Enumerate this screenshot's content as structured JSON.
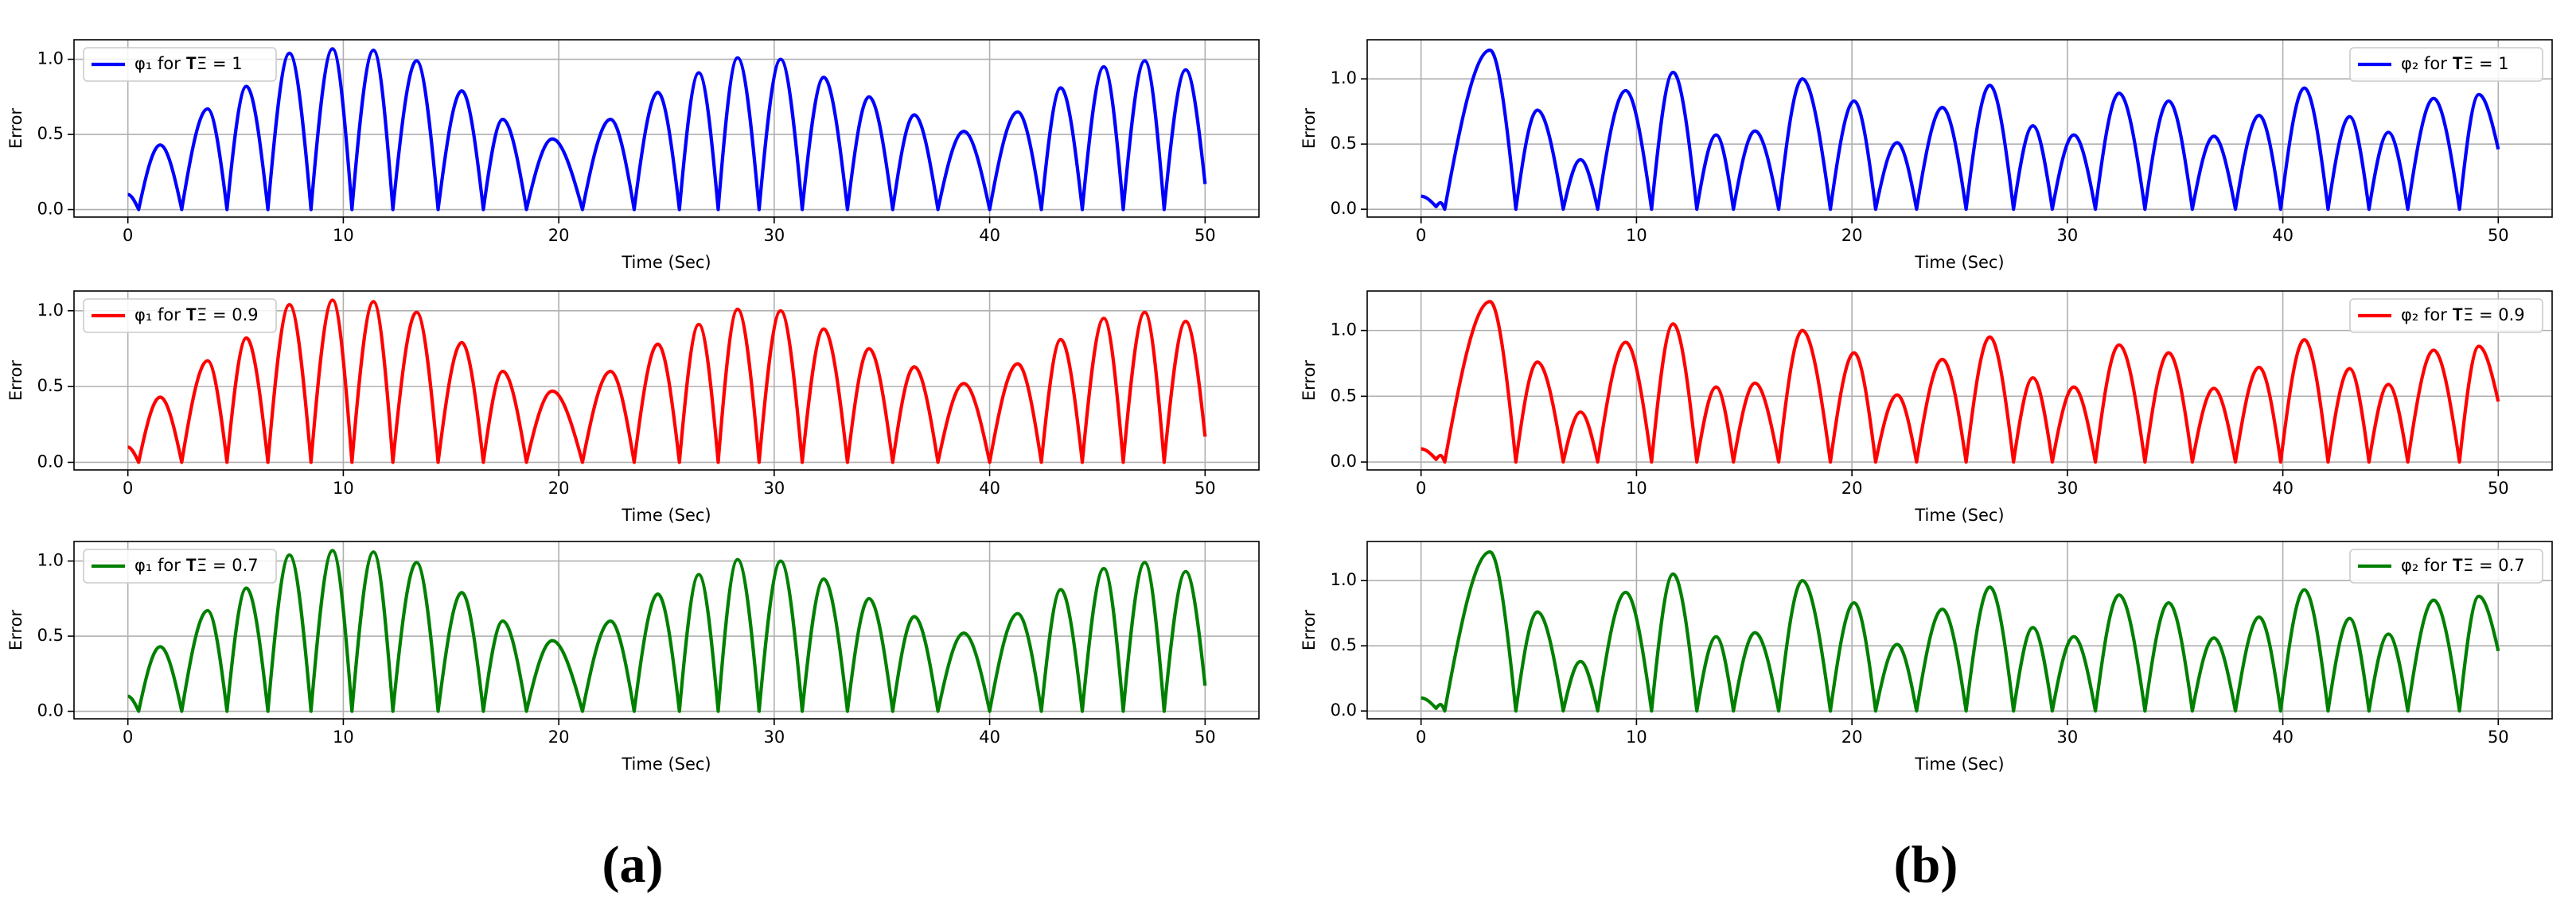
{
  "chart_data": [
    {
      "type": "line",
      "xlabel": "Time (Sec)",
      "ylabel": "Error",
      "x": [
        0,
        0.5,
        1.5,
        2.5,
        3.7,
        4.6,
        5.5,
        6.5,
        7.5,
        8.5,
        9.5,
        10.4,
        11.4,
        12.3,
        13.4,
        14.4,
        15.5,
        16.5,
        17.4,
        18.5,
        19.7,
        21.1,
        22.4,
        23.5,
        24.6,
        25.6,
        26.5,
        27.4,
        28.3,
        29.3,
        30.3,
        31.3,
        32.3,
        33.4,
        34.4,
        35.5,
        36.5,
        37.6,
        38.8,
        40.0,
        41.3,
        42.4,
        43.3,
        44.3,
        45.3,
        46.2,
        47.2,
        48.1,
        49.1,
        50
      ],
      "series": [
        {
          "name": "φ₁ for 𝐓Ξ = 1",
          "color": "#0000ff",
          "values": [
            0.1,
            0,
            0.43,
            0,
            0.67,
            0,
            0.82,
            0,
            1.04,
            0,
            1.07,
            0,
            1.06,
            0,
            0.99,
            0,
            0.79,
            0,
            0.6,
            0,
            0.47,
            0,
            0.6,
            0,
            0.78,
            0,
            0.91,
            0,
            1.01,
            0,
            1.0,
            0,
            0.88,
            0,
            0.75,
            0,
            0.63,
            0,
            0.52,
            0,
            0.65,
            0,
            0.81,
            0,
            0.95,
            0,
            0.99,
            0,
            0.93,
            0.17
          ]
        }
      ],
      "xlim": [
        -2.5,
        52.5
      ],
      "ylim": [
        -0.05,
        1.13
      ],
      "xticks": [
        0,
        10,
        20,
        30,
        40,
        50
      ],
      "yticks": [
        {
          "value": 0,
          "label": "0.0"
        },
        {
          "value": 0.5,
          "label": "0.5"
        },
        {
          "value": 1,
          "label": "1.0"
        }
      ],
      "grid": true,
      "legend": "upper left"
    },
    {
      "type": "line",
      "xlabel": "Time (Sec)",
      "ylabel": "Error",
      "x": [
        0,
        0.5,
        1.5,
        2.5,
        3.7,
        4.6,
        5.5,
        6.5,
        7.5,
        8.5,
        9.5,
        10.4,
        11.4,
        12.3,
        13.4,
        14.4,
        15.5,
        16.5,
        17.4,
        18.5,
        19.7,
        21.1,
        22.4,
        23.5,
        24.6,
        25.6,
        26.5,
        27.4,
        28.3,
        29.3,
        30.3,
        31.3,
        32.3,
        33.4,
        34.4,
        35.5,
        36.5,
        37.6,
        38.8,
        40.0,
        41.3,
        42.4,
        43.3,
        44.3,
        45.3,
        46.2,
        47.2,
        48.1,
        49.1,
        50
      ],
      "series": [
        {
          "name": "φ₁ for 𝐓Ξ = 0.9",
          "color": "#ff0000",
          "values": [
            0.1,
            0,
            0.43,
            0,
            0.67,
            0,
            0.82,
            0,
            1.04,
            0,
            1.07,
            0,
            1.06,
            0,
            0.99,
            0,
            0.79,
            0,
            0.6,
            0,
            0.47,
            0,
            0.6,
            0,
            0.78,
            0,
            0.91,
            0,
            1.01,
            0,
            1.0,
            0,
            0.88,
            0,
            0.75,
            0,
            0.63,
            0,
            0.52,
            0,
            0.65,
            0,
            0.81,
            0,
            0.95,
            0,
            0.99,
            0,
            0.93,
            0.17
          ]
        }
      ],
      "xlim": [
        -2.5,
        52.5
      ],
      "ylim": [
        -0.05,
        1.13
      ],
      "xticks": [
        0,
        10,
        20,
        30,
        40,
        50
      ],
      "yticks": [
        {
          "value": 0,
          "label": "0.0"
        },
        {
          "value": 0.5,
          "label": "0.5"
        },
        {
          "value": 1,
          "label": "1.0"
        }
      ],
      "grid": true,
      "legend": "upper left"
    },
    {
      "type": "line",
      "xlabel": "Time (Sec)",
      "ylabel": "Error",
      "x": [
        0,
        0.5,
        1.5,
        2.5,
        3.7,
        4.6,
        5.5,
        6.5,
        7.5,
        8.5,
        9.5,
        10.4,
        11.4,
        12.3,
        13.4,
        14.4,
        15.5,
        16.5,
        17.4,
        18.5,
        19.7,
        21.1,
        22.4,
        23.5,
        24.6,
        25.6,
        26.5,
        27.4,
        28.3,
        29.3,
        30.3,
        31.3,
        32.3,
        33.4,
        34.4,
        35.5,
        36.5,
        37.6,
        38.8,
        40.0,
        41.3,
        42.4,
        43.3,
        44.3,
        45.3,
        46.2,
        47.2,
        48.1,
        49.1,
        50
      ],
      "series": [
        {
          "name": "φ₁ for 𝐓Ξ = 0.7",
          "color": "#008000",
          "values": [
            0.1,
            0,
            0.43,
            0,
            0.67,
            0,
            0.82,
            0,
            1.04,
            0,
            1.07,
            0,
            1.06,
            0,
            0.99,
            0,
            0.79,
            0,
            0.6,
            0,
            0.47,
            0,
            0.6,
            0,
            0.78,
            0,
            0.91,
            0,
            1.01,
            0,
            1.0,
            0,
            0.88,
            0,
            0.75,
            0,
            0.63,
            0,
            0.52,
            0,
            0.65,
            0,
            0.81,
            0,
            0.95,
            0,
            0.99,
            0,
            0.93,
            0.17
          ]
        }
      ],
      "xlim": [
        -2.5,
        52.5
      ],
      "ylim": [
        -0.05,
        1.13
      ],
      "xticks": [
        0,
        10,
        20,
        30,
        40,
        50
      ],
      "yticks": [
        {
          "value": 0,
          "label": "0.0"
        },
        {
          "value": 0.5,
          "label": "0.5"
        },
        {
          "value": 1,
          "label": "1.0"
        }
      ],
      "grid": true,
      "legend": "upper left"
    },
    {
      "type": "line",
      "xlabel": "Time (Sec)",
      "ylabel": "Error",
      "x": [
        0,
        0.7,
        0.9,
        1.1,
        3.2,
        4.4,
        5.4,
        6.6,
        7.4,
        8.2,
        9.5,
        10.7,
        11.7,
        12.8,
        13.7,
        14.5,
        15.5,
        16.6,
        17.7,
        19.0,
        20.1,
        21.1,
        22.1,
        23.0,
        24.2,
        25.3,
        26.4,
        27.5,
        28.4,
        29.3,
        30.3,
        31.3,
        32.4,
        33.6,
        34.7,
        35.8,
        36.8,
        37.8,
        38.9,
        39.9,
        41.0,
        42.1,
        43.1,
        44.0,
        44.9,
        45.8,
        47.0,
        48.2,
        49.1,
        50
      ],
      "series": [
        {
          "name": "φ₂ for 𝐓Ξ = 1",
          "color": "#0000ff",
          "values": [
            0.1,
            0.02,
            0.05,
            0,
            1.22,
            0,
            0.76,
            0,
            0.38,
            0,
            0.91,
            0,
            1.05,
            0,
            0.57,
            0,
            0.6,
            0,
            1.0,
            0,
            0.83,
            0,
            0.51,
            0,
            0.78,
            0,
            0.95,
            0,
            0.64,
            0,
            0.57,
            0,
            0.89,
            0,
            0.83,
            0,
            0.56,
            0,
            0.72,
            0,
            0.93,
            0,
            0.71,
            0,
            0.59,
            0,
            0.85,
            0,
            0.88,
            0.46
          ]
        }
      ],
      "xlim": [
        -2.5,
        52.5
      ],
      "ylim": [
        -0.06,
        1.3
      ],
      "xticks": [
        0,
        10,
        20,
        30,
        40,
        50
      ],
      "yticks": [
        {
          "value": 0,
          "label": "0.0"
        },
        {
          "value": 0.5,
          "label": "0.5"
        },
        {
          "value": 1,
          "label": "1.0"
        }
      ],
      "grid": true,
      "legend": "upper right"
    },
    {
      "type": "line",
      "xlabel": "Time (Sec)",
      "ylabel": "Error",
      "x": [
        0,
        0.7,
        0.9,
        1.1,
        3.2,
        4.4,
        5.4,
        6.6,
        7.4,
        8.2,
        9.5,
        10.7,
        11.7,
        12.8,
        13.7,
        14.5,
        15.5,
        16.6,
        17.7,
        19.0,
        20.1,
        21.1,
        22.1,
        23.0,
        24.2,
        25.3,
        26.4,
        27.5,
        28.4,
        29.3,
        30.3,
        31.3,
        32.4,
        33.6,
        34.7,
        35.8,
        36.8,
        37.8,
        38.9,
        39.9,
        41.0,
        42.1,
        43.1,
        44.0,
        44.9,
        45.8,
        47.0,
        48.2,
        49.1,
        50
      ],
      "series": [
        {
          "name": "φ₂ for 𝐓Ξ = 0.9",
          "color": "#ff0000",
          "values": [
            0.1,
            0.02,
            0.05,
            0,
            1.22,
            0,
            0.76,
            0,
            0.38,
            0,
            0.91,
            0,
            1.05,
            0,
            0.57,
            0,
            0.6,
            0,
            1.0,
            0,
            0.83,
            0,
            0.51,
            0,
            0.78,
            0,
            0.95,
            0,
            0.64,
            0,
            0.57,
            0,
            0.89,
            0,
            0.83,
            0,
            0.56,
            0,
            0.72,
            0,
            0.93,
            0,
            0.71,
            0,
            0.59,
            0,
            0.85,
            0,
            0.88,
            0.46
          ]
        }
      ],
      "xlim": [
        -2.5,
        52.5
      ],
      "ylim": [
        -0.06,
        1.3
      ],
      "xticks": [
        0,
        10,
        20,
        30,
        40,
        50
      ],
      "yticks": [
        {
          "value": 0,
          "label": "0.0"
        },
        {
          "value": 0.5,
          "label": "0.5"
        },
        {
          "value": 1,
          "label": "1.0"
        }
      ],
      "grid": true,
      "legend": "upper right"
    },
    {
      "type": "line",
      "xlabel": "Time (Sec)",
      "ylabel": "Error",
      "x": [
        0,
        0.7,
        0.9,
        1.1,
        3.2,
        4.4,
        5.4,
        6.6,
        7.4,
        8.2,
        9.5,
        10.7,
        11.7,
        12.8,
        13.7,
        14.5,
        15.5,
        16.6,
        17.7,
        19.0,
        20.1,
        21.1,
        22.1,
        23.0,
        24.2,
        25.3,
        26.4,
        27.5,
        28.4,
        29.3,
        30.3,
        31.3,
        32.4,
        33.6,
        34.7,
        35.8,
        36.8,
        37.8,
        38.9,
        39.9,
        41.0,
        42.1,
        43.1,
        44.0,
        44.9,
        45.8,
        47.0,
        48.2,
        49.1,
        50
      ],
      "series": [
        {
          "name": "φ₂ for 𝐓Ξ = 0.7",
          "color": "#008000",
          "values": [
            0.1,
            0.02,
            0.05,
            0,
            1.22,
            0,
            0.76,
            0,
            0.38,
            0,
            0.91,
            0,
            1.05,
            0,
            0.57,
            0,
            0.6,
            0,
            1.0,
            0,
            0.83,
            0,
            0.51,
            0,
            0.78,
            0,
            0.95,
            0,
            0.64,
            0,
            0.57,
            0,
            0.89,
            0,
            0.83,
            0,
            0.56,
            0,
            0.72,
            0,
            0.93,
            0,
            0.71,
            0,
            0.59,
            0,
            0.85,
            0,
            0.88,
            0.46
          ]
        }
      ],
      "xlim": [
        -2.5,
        52.5
      ],
      "ylim": [
        -0.06,
        1.3
      ],
      "xticks": [
        0,
        10,
        20,
        30,
        40,
        50
      ],
      "yticks": [
        {
          "value": 0,
          "label": "0.0"
        },
        {
          "value": 0.5,
          "label": "0.5"
        },
        {
          "value": 1,
          "label": "1.0"
        }
      ],
      "grid": true,
      "legend": "upper right"
    }
  ],
  "panel_labels": [
    "(a)",
    "(b)"
  ]
}
